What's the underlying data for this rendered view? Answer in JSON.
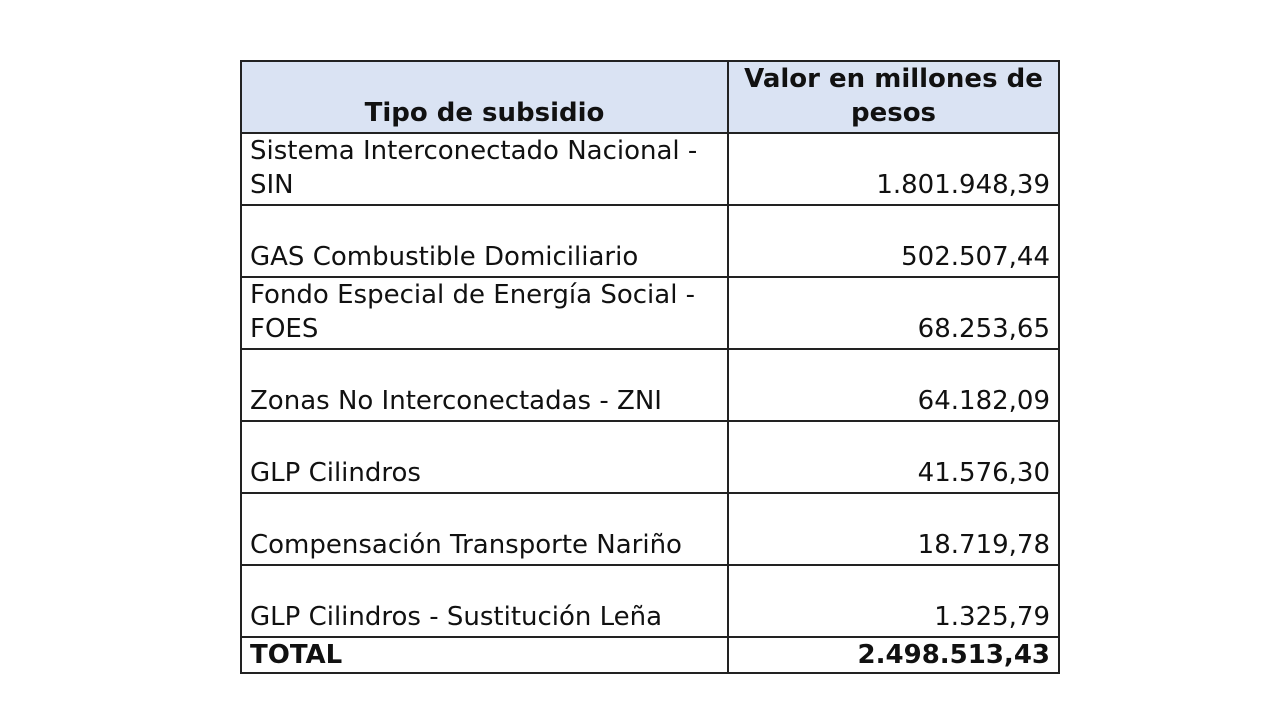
{
  "table": {
    "headers": [
      "Tipo de subsidio",
      "Valor en millones de pesos"
    ],
    "header_bg": "#dae3f3",
    "rows": [
      {
        "name": "Sistema Interconectado Nacional - SIN",
        "value": "1.801.948,39"
      },
      {
        "name": "GAS Combustible Domiciliario",
        "value": "502.507,44"
      },
      {
        "name": "Fondo Especial de Energía Social - FOES",
        "value": "68.253,65"
      },
      {
        "name": "Zonas No Interconectadas - ZNI",
        "value": "64.182,09"
      },
      {
        "name": "GLP Cilindros",
        "value": "41.576,30"
      },
      {
        "name": "Compensación Transporte Nariño",
        "value": "18.719,78"
      },
      {
        "name": "GLP Cilindros - Sustitución Leña",
        "value": "1.325,79"
      }
    ],
    "total": {
      "label": "TOTAL",
      "value": "2.498.513,43"
    }
  }
}
